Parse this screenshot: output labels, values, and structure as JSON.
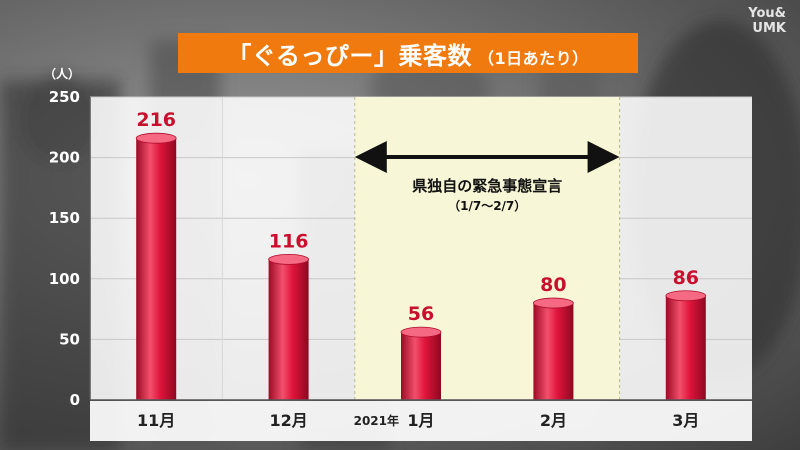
{
  "watermark": "You&\nUMK",
  "title": {
    "main": "「ぐるっぴー」乗客数",
    "sub": "（1日あたり）"
  },
  "chart_data": {
    "type": "bar",
    "categories": [
      "11月",
      "12月",
      "1月",
      "2月",
      "3月"
    ],
    "year_prefix": "2021年",
    "year_prefix_category": "1月",
    "values": [
      216,
      116,
      56,
      80,
      86
    ],
    "ylabel_unit": "（人）",
    "ylim": [
      0,
      250
    ],
    "yticks": [
      0,
      50,
      100,
      150,
      200,
      250
    ],
    "grid": true,
    "bar_color": "#e0143c",
    "highlight": {
      "from_category": "1月",
      "to_category": "2月",
      "label": "県独自の緊急事態宣言",
      "sublabel": "（1/7〜2/7）",
      "color": "#f7f7d8"
    }
  }
}
